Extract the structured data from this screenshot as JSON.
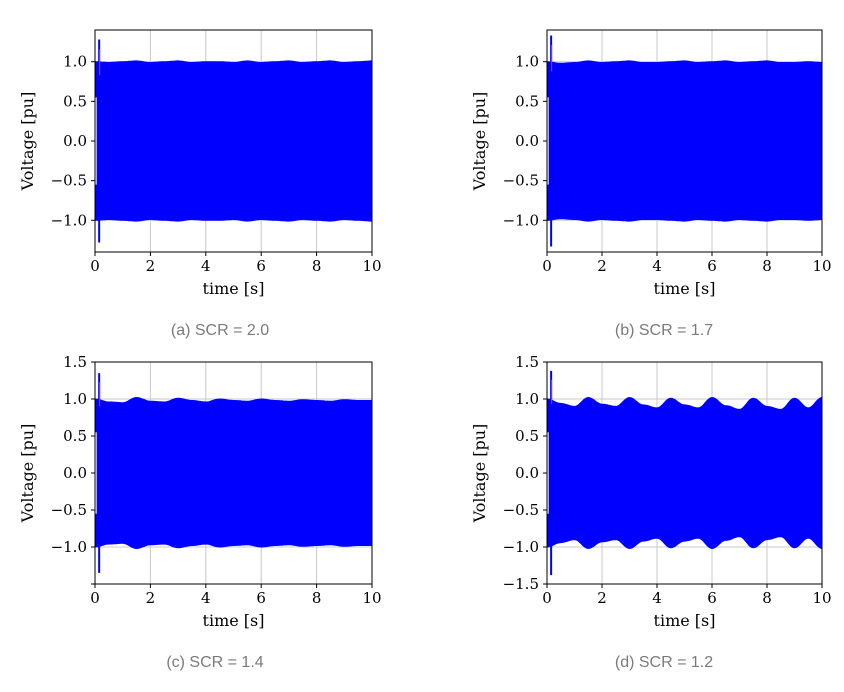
{
  "chart_data": [
    {
      "type": "line",
      "caption": "(a)  SCR = 2.0",
      "xlabel": "time [s]",
      "ylabel": "Voltage [pu]",
      "xlim": [
        0,
        10
      ],
      "ylim": [
        -1.4,
        1.4
      ],
      "xticks": [
        0,
        2,
        4,
        6,
        8,
        10
      ],
      "xtick_labels": [
        "0",
        "2",
        "4",
        "6",
        "8",
        "10"
      ],
      "yticks": [
        -1.0,
        -0.5,
        0.0,
        0.5,
        1.0
      ],
      "ytick_labels": [
        "−1.0",
        "−0.5",
        "0.0",
        "0.5",
        "1.0"
      ],
      "grid": true,
      "series": [
        {
          "color": "#0000ff",
          "envelope_x": [
            0,
            0.5,
            1,
            1.5,
            2,
            2.5,
            3,
            3.5,
            4,
            4.5,
            5,
            5.5,
            6,
            6.5,
            7,
            7.5,
            8,
            8.5,
            9,
            9.5,
            10
          ],
          "upper": [
            1.0,
            0.99,
            1.0,
            1.01,
            0.99,
            1.0,
            1.01,
            0.99,
            1.0,
            1.0,
            0.99,
            1.01,
            0.99,
            1.0,
            1.01,
            0.99,
            1.0,
            1.01,
            0.99,
            1.0,
            1.01
          ],
          "lower": [
            -1.0,
            -0.99,
            -1.0,
            -1.01,
            -0.99,
            -1.0,
            -1.01,
            -0.99,
            -1.0,
            -1.0,
            -0.99,
            -1.01,
            -0.99,
            -1.0,
            -1.01,
            -0.99,
            -1.0,
            -1.01,
            -0.99,
            -1.0,
            -1.01
          ],
          "spike_t": 0.15,
          "spike_max": 1.28,
          "spike_min": -1.28
        }
      ]
    },
    {
      "type": "line",
      "caption": "(b)  SCR = 1.7",
      "xlabel": "time [s]",
      "ylabel": "Voltage [pu]",
      "xlim": [
        0,
        10
      ],
      "ylim": [
        -1.4,
        1.4
      ],
      "xticks": [
        0,
        2,
        4,
        6,
        8,
        10
      ],
      "xtick_labels": [
        "0",
        "2",
        "4",
        "6",
        "8",
        "10"
      ],
      "yticks": [
        -1.0,
        -0.5,
        0.0,
        0.5,
        1.0
      ],
      "ytick_labels": [
        "−1.0",
        "−0.5",
        "0.0",
        "0.5",
        "1.0"
      ],
      "grid": true,
      "series": [
        {
          "color": "#0000ff",
          "envelope_x": [
            0,
            0.5,
            1,
            1.5,
            2,
            2.5,
            3,
            3.5,
            4,
            4.5,
            5,
            5.5,
            6,
            6.5,
            7,
            7.5,
            8,
            8.5,
            9,
            9.5,
            10
          ],
          "upper": [
            1.0,
            0.98,
            0.99,
            1.01,
            0.99,
            1.0,
            1.01,
            0.99,
            0.99,
            1.0,
            1.01,
            0.99,
            1.0,
            1.01,
            0.99,
            1.0,
            1.01,
            0.99,
            0.99,
            1.0,
            0.99
          ],
          "lower": [
            -1.0,
            -0.98,
            -0.99,
            -1.01,
            -0.99,
            -1.0,
            -1.01,
            -0.99,
            -0.99,
            -1.0,
            -1.01,
            -0.99,
            -1.0,
            -1.01,
            -0.99,
            -1.0,
            -1.01,
            -0.99,
            -0.99,
            -1.0,
            -0.99
          ],
          "spike_t": 0.15,
          "spike_max": 1.33,
          "spike_min": -1.33
        }
      ]
    },
    {
      "type": "line",
      "caption": "(c)  SCR = 1.4",
      "xlabel": "time [s]",
      "ylabel": "Voltage [pu]",
      "xlim": [
        0,
        10
      ],
      "ylim": [
        -1.5,
        1.5
      ],
      "xticks": [
        0,
        2,
        4,
        6,
        8,
        10
      ],
      "xtick_labels": [
        "0",
        "2",
        "4",
        "6",
        "8",
        "10"
      ],
      "yticks": [
        -1.5,
        -1.0,
        -0.5,
        0.0,
        0.5,
        1.0,
        1.5
      ],
      "ytick_labels": [
        "",
        "−1.0",
        "−0.5",
        "0.0",
        "0.5",
        "1.0",
        "1.5"
      ],
      "grid": true,
      "series": [
        {
          "color": "#0000ff",
          "envelope_x": [
            0,
            0.5,
            1,
            1.5,
            2,
            2.5,
            3,
            3.5,
            4,
            4.5,
            5,
            5.5,
            6,
            6.5,
            7,
            7.5,
            8,
            8.5,
            9,
            9.5,
            10
          ],
          "upper": [
            1.0,
            0.96,
            0.95,
            1.02,
            0.97,
            0.96,
            1.01,
            0.98,
            0.96,
            1.0,
            0.98,
            0.97,
            1.0,
            0.98,
            0.97,
            0.99,
            0.98,
            0.97,
            0.99,
            0.98,
            0.98
          ],
          "lower": [
            -1.0,
            -0.96,
            -0.95,
            -1.02,
            -0.97,
            -0.96,
            -1.01,
            -0.98,
            -0.96,
            -1.0,
            -0.98,
            -0.97,
            -1.0,
            -0.98,
            -0.97,
            -0.99,
            -0.98,
            -0.97,
            -0.99,
            -0.98,
            -0.98
          ],
          "spike_t": 0.15,
          "spike_max": 1.35,
          "spike_min": -1.35
        }
      ]
    },
    {
      "type": "line",
      "caption": "(d)  SCR = 1.2",
      "xlabel": "time [s]",
      "ylabel": "Voltage [pu]",
      "xlim": [
        0,
        10
      ],
      "ylim": [
        -1.5,
        1.5
      ],
      "xticks": [
        0,
        2,
        4,
        6,
        8,
        10
      ],
      "xtick_labels": [
        "0",
        "2",
        "4",
        "6",
        "8",
        "10"
      ],
      "yticks": [
        -1.5,
        -1.0,
        -0.5,
        0.0,
        0.5,
        1.0,
        1.5
      ],
      "ytick_labels": [
        "−1.5",
        "−1.0",
        "−0.5",
        "0.0",
        "0.5",
        "1.0",
        "1.5"
      ],
      "grid": true,
      "series": [
        {
          "color": "#0000ff",
          "envelope_x": [
            0,
            0.5,
            1,
            1.5,
            2,
            2.5,
            3,
            3.5,
            4,
            4.5,
            5,
            5.5,
            6,
            6.5,
            7,
            7.5,
            8,
            8.5,
            9,
            9.5,
            10
          ],
          "upper": [
            1.0,
            0.94,
            0.9,
            1.02,
            0.93,
            0.9,
            1.02,
            0.92,
            0.88,
            1.01,
            0.92,
            0.88,
            1.02,
            0.91,
            0.86,
            1.01,
            0.9,
            0.86,
            1.01,
            0.88,
            1.02
          ],
          "lower": [
            -1.0,
            -0.94,
            -0.9,
            -1.02,
            -0.93,
            -0.9,
            -1.02,
            -0.92,
            -0.88,
            -1.01,
            -0.92,
            -0.88,
            -1.02,
            -0.91,
            -0.86,
            -1.01,
            -0.9,
            -0.86,
            -1.01,
            -0.88,
            -1.02
          ],
          "spike_t": 0.15,
          "spike_max": 1.38,
          "spike_min": -1.38
        }
      ]
    }
  ]
}
